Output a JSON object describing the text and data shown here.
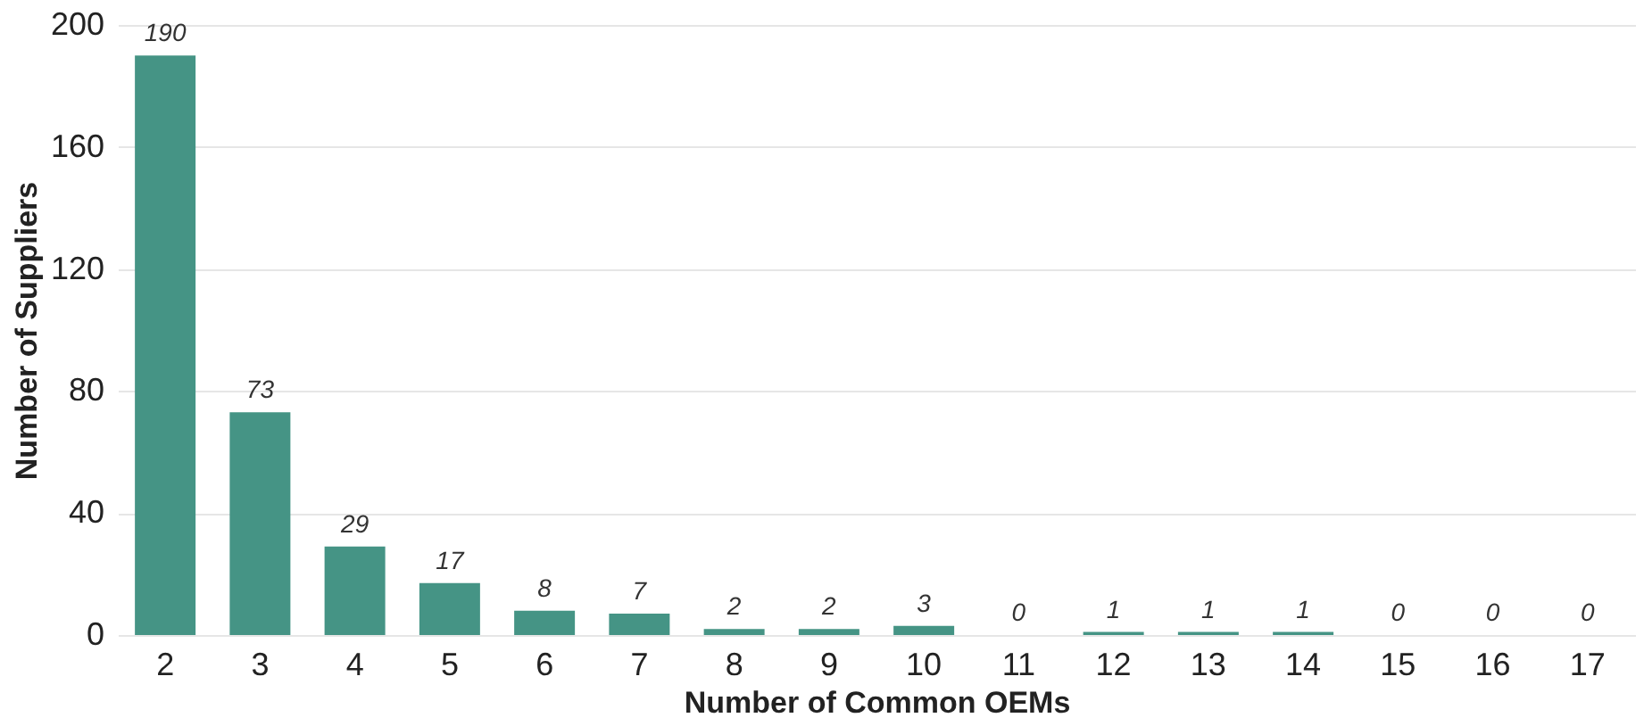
{
  "chart_data": {
    "type": "bar",
    "xlabel": "Number of Common OEMs",
    "ylabel": "Number of Suppliers",
    "categories": [
      "2",
      "3",
      "4",
      "5",
      "6",
      "7",
      "8",
      "9",
      "10",
      "11",
      "12",
      "13",
      "14",
      "15",
      "16",
      "17"
    ],
    "values": [
      190,
      73,
      29,
      17,
      8,
      7,
      2,
      2,
      3,
      0,
      1,
      1,
      1,
      0,
      0,
      0
    ],
    "color": "#459485",
    "ylim": [
      0,
      200
    ],
    "yticks": [
      0,
      40,
      80,
      120,
      160,
      200
    ],
    "grid": "y",
    "data_labels": true
  }
}
